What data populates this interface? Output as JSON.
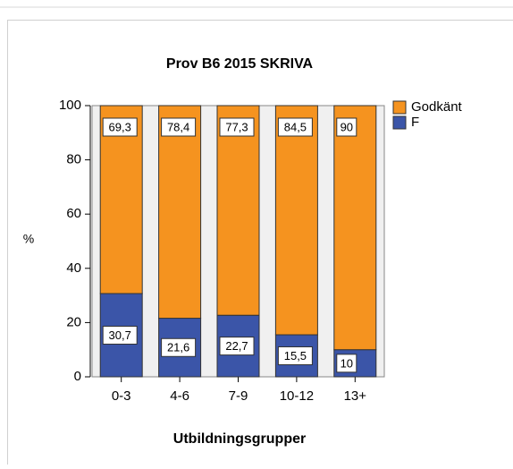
{
  "chart_data": {
    "type": "stacked_bar",
    "title": "Prov B6 2015 SKRIVA",
    "x_label": "Utbildningsgrupper",
    "y_label": "%",
    "categories": [
      "0-3",
      "4-6",
      "7-9",
      "10-12",
      "13+"
    ],
    "series": [
      {
        "name": "F",
        "color": "#3b55a8",
        "values": [
          30.7,
          21.6,
          22.7,
          15.5,
          10
        ],
        "value_labels": [
          "30,7",
          "21,6",
          "22,7",
          "15,5",
          "10"
        ]
      },
      {
        "name": "Godkänt",
        "color": "#f5931f",
        "values": [
          69.3,
          78.4,
          77.3,
          84.5,
          90
        ],
        "value_labels": [
          "69,3",
          "78,4",
          "77,3",
          "84,5",
          "90"
        ]
      }
    ],
    "ylim": [
      0,
      100
    ],
    "yticks": [
      0,
      20,
      40,
      60,
      80,
      100
    ]
  }
}
